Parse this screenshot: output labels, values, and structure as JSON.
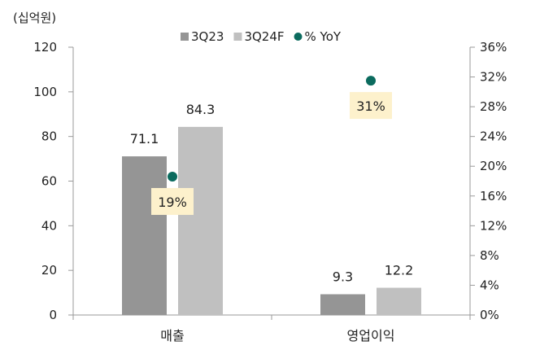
{
  "chart_data": {
    "type": "bar",
    "unit_label": "(십억원)",
    "categories": [
      "매출",
      "영업이익"
    ],
    "series": [
      {
        "name": "3Q23",
        "values": [
          71.1,
          9.3
        ],
        "labels": [
          "71.1",
          "9.3"
        ],
        "color": "#959595"
      },
      {
        "name": "3Q24F",
        "values": [
          84.3,
          12.2
        ],
        "labels": [
          "84.3",
          "12.2"
        ],
        "color": "#c0c0c0"
      }
    ],
    "yoy": {
      "name": "% YoY",
      "values": [
        18.6,
        31.5
      ],
      "labels": [
        "19%",
        "31%"
      ],
      "color": "#0b6b5e",
      "label_bg": "#fdf1cc"
    },
    "y_left": {
      "min": 0,
      "max": 120,
      "ticks": [
        "0",
        "20",
        "40",
        "60",
        "80",
        "100",
        "120"
      ]
    },
    "y_right": {
      "min": 0,
      "max": 36,
      "ticks": [
        "0%",
        "4%",
        "8%",
        "12%",
        "16%",
        "20%",
        "24%",
        "28%",
        "32%",
        "36%"
      ]
    },
    "legend_position": "top-center",
    "grid": false
  }
}
